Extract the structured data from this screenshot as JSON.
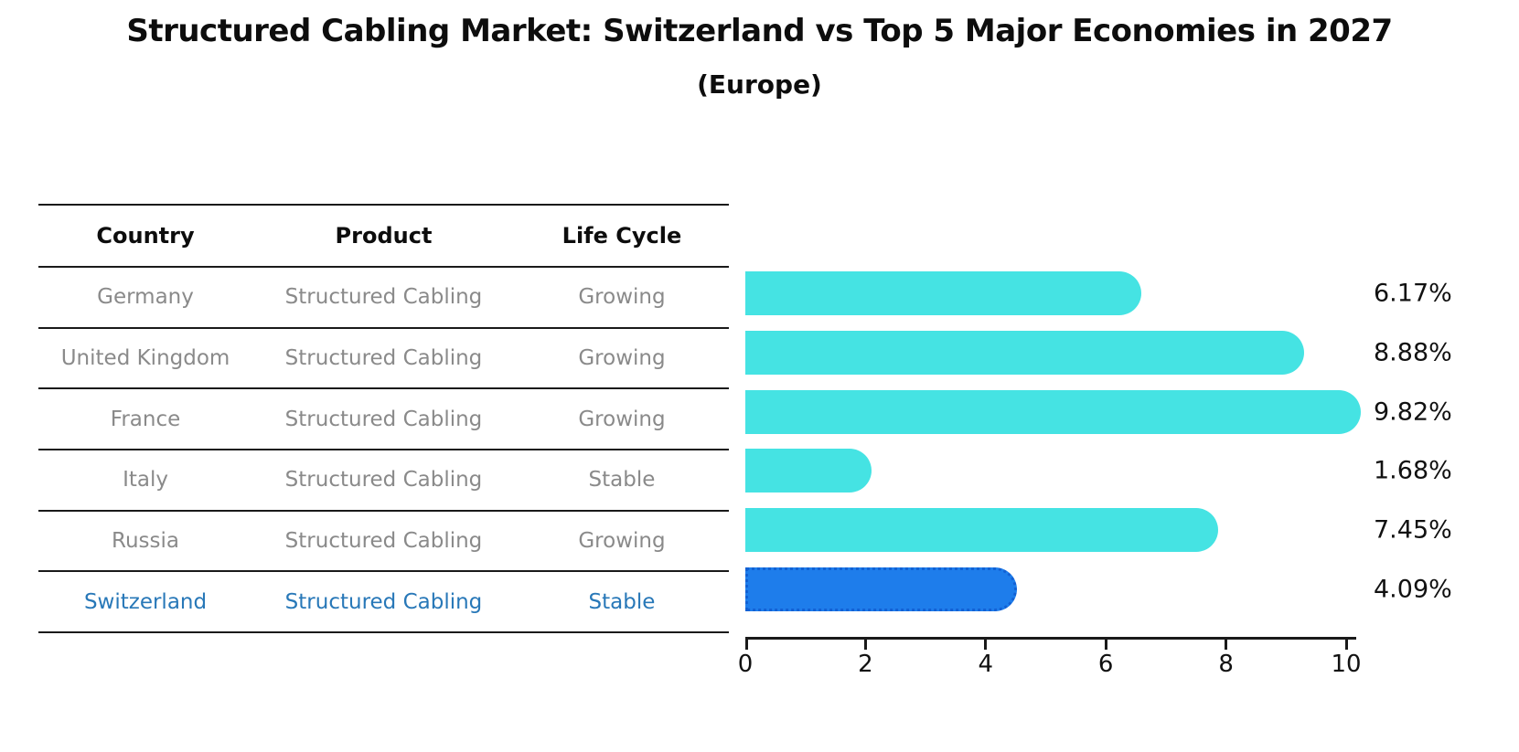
{
  "header": {
    "title": "Structured Cabling Market: Switzerland vs Top 5 Major Economies in 2027",
    "subtitle": "(Europe)"
  },
  "table": {
    "columns": [
      "Country",
      "Product",
      "Life Cycle"
    ],
    "rows": [
      {
        "country": "Germany",
        "product": "Structured Cabling",
        "life_cycle": "Growing",
        "highlighted": false
      },
      {
        "country": "United Kingdom",
        "product": "Structured Cabling",
        "life_cycle": "Growing",
        "highlighted": false
      },
      {
        "country": "France",
        "product": "Structured Cabling",
        "life_cycle": "Growing",
        "highlighted": false
      },
      {
        "country": "Italy",
        "product": "Structured Cabling",
        "life_cycle": "Stable",
        "highlighted": false
      },
      {
        "country": "Russia",
        "product": "Structured Cabling",
        "life_cycle": "Growing",
        "highlighted": false
      },
      {
        "country": "Switzerland",
        "product": "Structured Cabling",
        "life_cycle": "Stable",
        "highlighted": true
      }
    ]
  },
  "chart_data": {
    "type": "bar",
    "orientation": "horizontal",
    "categories": [
      "Germany",
      "United Kingdom",
      "France",
      "Italy",
      "Russia",
      "Switzerland"
    ],
    "values": [
      6.17,
      8.88,
      9.82,
      1.68,
      7.45,
      4.09
    ],
    "value_labels": [
      "6.17%",
      "8.88%",
      "9.82%",
      "1.68%",
      "7.45%",
      "4.09%"
    ],
    "x_ticks": [
      0,
      2,
      4,
      6,
      8,
      10
    ],
    "xlim": [
      0,
      10
    ],
    "grid": false,
    "legend": false,
    "bar_color": "#45e3e3",
    "highlight_index": 5,
    "highlight_color": "#1e7deb",
    "highlight_border_color": "#1261d4",
    "highlight_text_color": "#2878b8",
    "row_text_color": "#8a8a8a",
    "label_color": "#111111"
  }
}
